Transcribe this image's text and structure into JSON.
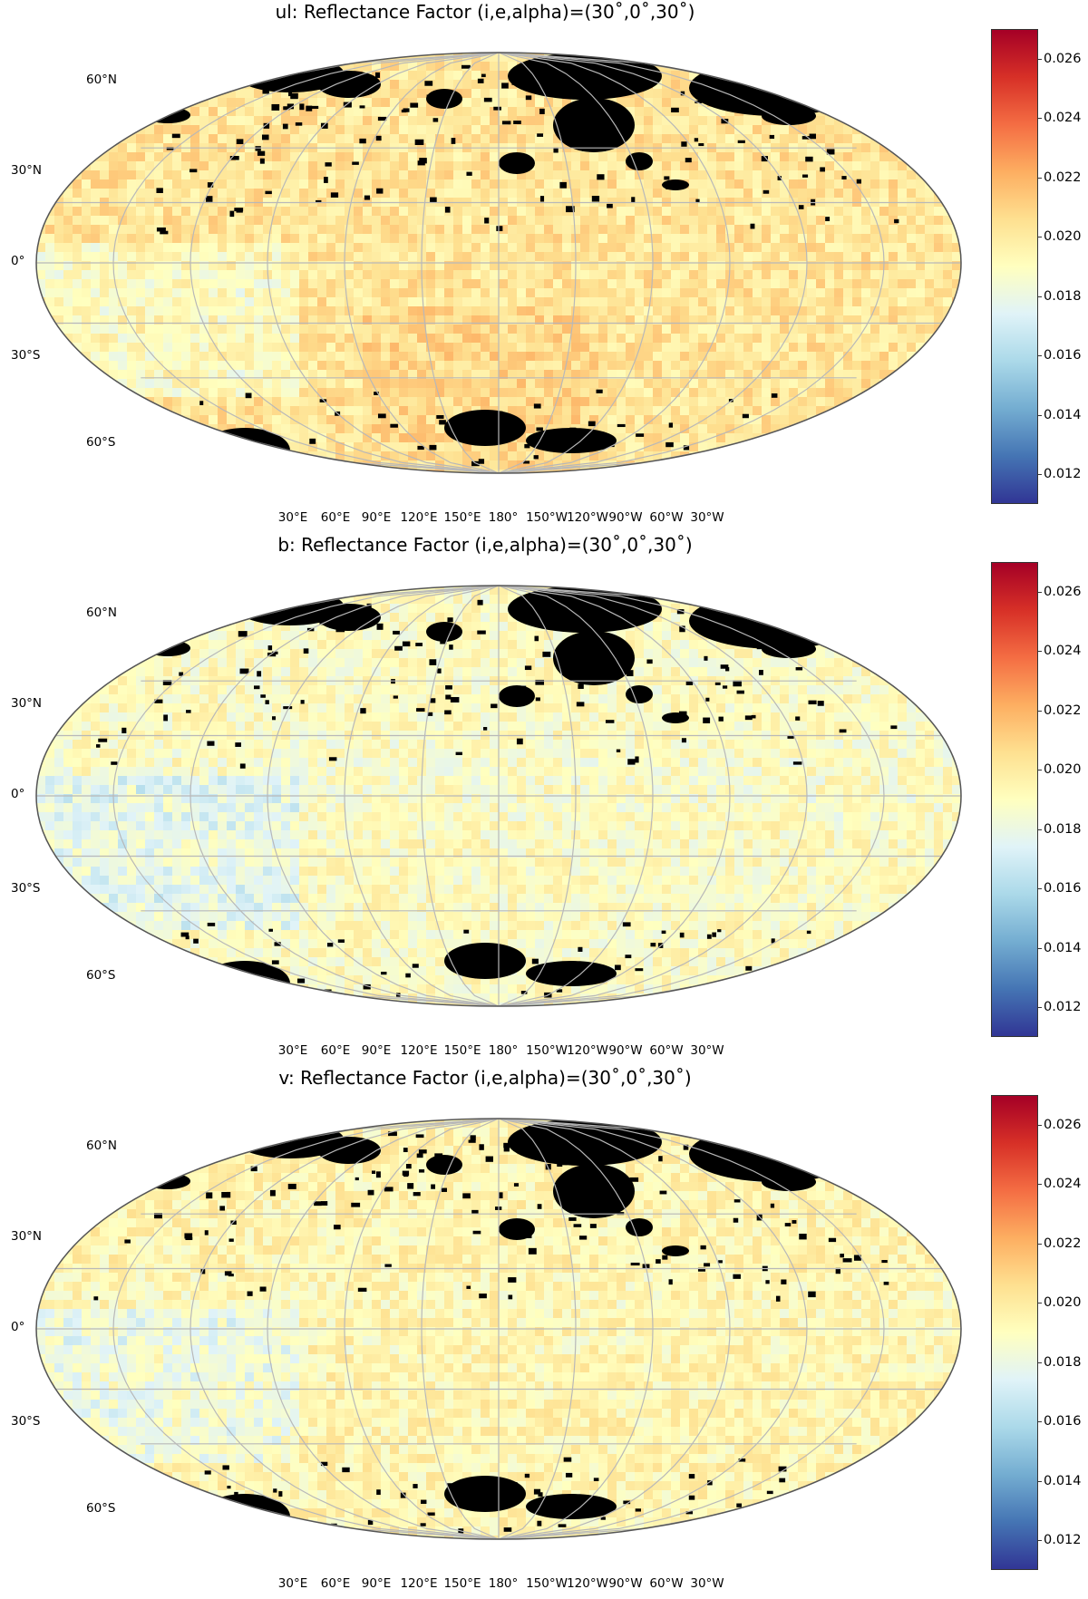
{
  "figure": {
    "panels": [
      {
        "id": "ul",
        "title": "ul: Reflectance Factor (i,e,alpha)=(30˚,0˚,30˚)"
      },
      {
        "id": "b",
        "title": "b: Reflectance Factor (i,e,alpha)=(30˚,0˚,30˚)"
      },
      {
        "id": "v",
        "title": "v: Reflectance Factor (i,e,alpha)=(30˚,0˚,30˚)"
      }
    ],
    "lat_labels": [
      "60°N",
      "30°N",
      "0°",
      "30°S",
      "60°S"
    ],
    "lon_labels": [
      "30°E",
      "60°E",
      "90°E",
      "120°E",
      "150°E",
      "180°",
      "150°W",
      "120°W",
      "90°W",
      "60°W",
      "30°W"
    ],
    "colorbar": {
      "colormap": "RdYlBu_r",
      "range": [
        0.011,
        0.027
      ],
      "ticks": [
        "0.026",
        "0.024",
        "0.022",
        "0.020",
        "0.018",
        "0.016",
        "0.014",
        "0.012"
      ],
      "missing_color": "#000000"
    },
    "projection": "Robinson-like global map",
    "colors": {
      "graticule": "#b8b8b8",
      "outline": "#555555"
    }
  }
}
